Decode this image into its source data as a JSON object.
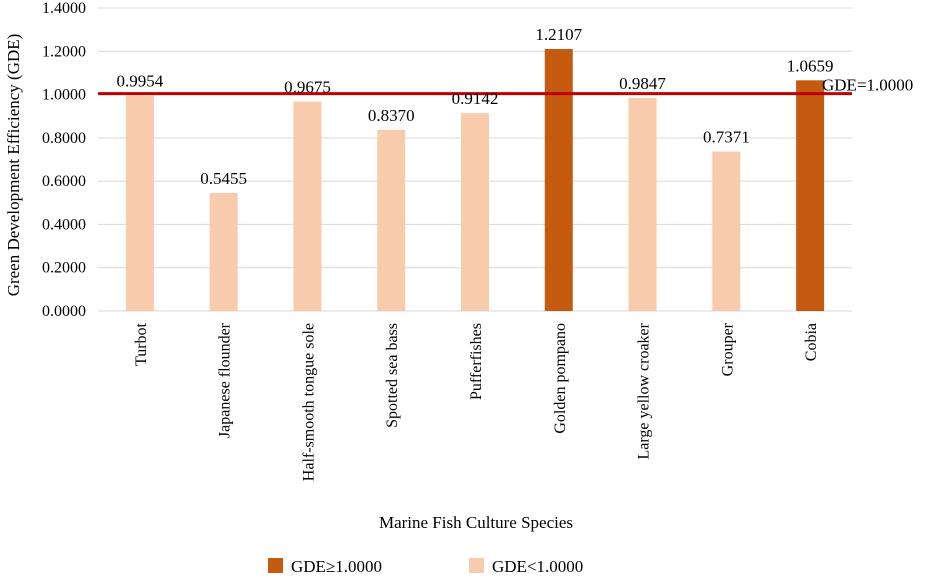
{
  "chart_data": {
    "type": "bar",
    "categories": [
      "Turbot",
      "Japanese flounder",
      "Half-smooth tongue sole",
      "Spotted sea bass",
      "Pufferfishes",
      "Golden pompano",
      "Large yellow croaker",
      "Grouper",
      "Cobia"
    ],
    "values": [
      0.9954,
      0.5455,
      0.9675,
      0.837,
      0.9142,
      1.2107,
      0.9847,
      0.7371,
      1.0659
    ],
    "value_labels": [
      "0.9954",
      "0.5455",
      "0.9675",
      "0.8370",
      "0.9142",
      "1.2107",
      "0.9847",
      "0.7371",
      "1.0659"
    ],
    "xlabel": "Marine Fish Culture Species",
    "ylabel": "Green Development Efficiency (GDE)",
    "ylim": [
      0,
      1.4
    ],
    "yticks": [
      "0.0000",
      "0.2000",
      "0.4000",
      "0.6000",
      "0.8000",
      "1.0000",
      "1.2000",
      "1.4000"
    ],
    "grid": true,
    "reference_line": {
      "value": 1.0,
      "label": "GDE=1.0000",
      "color": "#c00000"
    },
    "colors": {
      "high": "#c55a11",
      "low": "#f8cbad"
    },
    "legend": {
      "position": "bottom",
      "items": [
        {
          "label": "GDE≥1.0000",
          "color": "#c55a11"
        },
        {
          "label": "GDE<1.0000",
          "color": "#f8cbad"
        }
      ]
    }
  }
}
